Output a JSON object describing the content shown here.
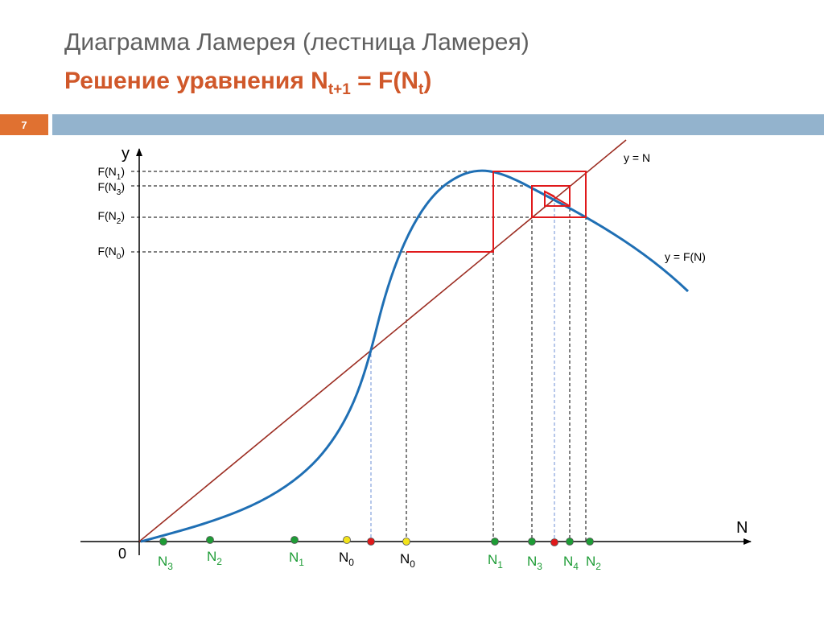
{
  "slide": {
    "title": "Диаграмма Ламерея (лестница Ламерея)",
    "subtitle_prefix": "Решение  уравнения N",
    "subtitle_sub1": "t+1",
    "subtitle_middle": " = F(N",
    "subtitle_sub2": "t",
    "subtitle_suffix": ")",
    "number": "7"
  },
  "colors": {
    "curve": "#1f6fb4",
    "diagonal": "#9c2d22",
    "staircase": "#e0191b",
    "green_point": "#1e9c36",
    "yellow_point": "#f2e31b",
    "red_point": "#e0191b",
    "title": "#5f5f5f",
    "subtitle": "#d0582a",
    "bar": "#93b3cd",
    "slide_number_box": "#e07131"
  },
  "diagram": {
    "y_axis_label": "y",
    "x_axis_label": "N",
    "origin_label": "0",
    "curve_label": "y = F(N)",
    "diagonal_label": "y = N",
    "y_ticks": [
      {
        "base": "F(N",
        "sub": "1",
        "end": ")"
      },
      {
        "base": "F(N",
        "sub": "3",
        "end": ")"
      },
      {
        "base": "F(N",
        "sub": "2",
        "end": ")"
      },
      {
        "base": "F(N",
        "sub": "0",
        "end": ")"
      }
    ],
    "points": [
      {
        "base": "N",
        "sub": "3",
        "color": "green"
      },
      {
        "base": "N",
        "sub": "2",
        "color": "green"
      },
      {
        "base": "N",
        "sub": "1",
        "color": "green"
      },
      {
        "base": "N",
        "sub": "0",
        "color": "yellow"
      },
      {
        "base": "",
        "sub": "",
        "color": "red"
      },
      {
        "base": "N",
        "sub": "0",
        "color": "yellow"
      },
      {
        "base": "N",
        "sub": "1",
        "color": "green"
      },
      {
        "base": "N",
        "sub": "3",
        "color": "green"
      },
      {
        "base": "",
        "sub": "",
        "color": "red"
      },
      {
        "base": "N",
        "sub": "4",
        "color": "green"
      },
      {
        "base": "N",
        "sub": "2",
        "color": "green"
      }
    ]
  }
}
